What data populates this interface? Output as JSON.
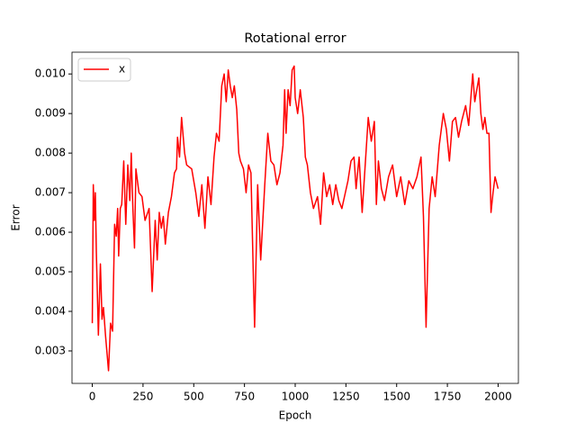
{
  "chart_data": {
    "type": "line",
    "title": "Rotational error",
    "xlabel": "Epoch",
    "ylabel": "Error",
    "legend": "upper left",
    "x": [
      0,
      5,
      10,
      15,
      20,
      30,
      40,
      48,
      55,
      65,
      80,
      90,
      100,
      110,
      118,
      125,
      130,
      138,
      145,
      155,
      165,
      175,
      185,
      192,
      200,
      208,
      215,
      230,
      245,
      260,
      280,
      295,
      310,
      320,
      330,
      340,
      350,
      360,
      375,
      390,
      405,
      415,
      420,
      430,
      440,
      455,
      465,
      490,
      510,
      525,
      540,
      555,
      570,
      585,
      600,
      612,
      625,
      638,
      650,
      660,
      670,
      680,
      690,
      700,
      712,
      722,
      730,
      745,
      758,
      770,
      782,
      795,
      800,
      815,
      830,
      850,
      865,
      880,
      895,
      910,
      925,
      940,
      948,
      955,
      965,
      975,
      985,
      995,
      1000,
      1012,
      1025,
      1040,
      1050,
      1060,
      1075,
      1090,
      1110,
      1125,
      1140,
      1155,
      1170,
      1185,
      1200,
      1215,
      1230,
      1260,
      1275,
      1290,
      1300,
      1315,
      1330,
      1345,
      1360,
      1375,
      1390,
      1400,
      1410,
      1425,
      1440,
      1460,
      1480,
      1500,
      1520,
      1540,
      1560,
      1580,
      1600,
      1620,
      1632,
      1645,
      1660,
      1675,
      1690,
      1710,
      1730,
      1745,
      1760,
      1775,
      1790,
      1805,
      1820,
      1840,
      1855,
      1875,
      1885,
      1895,
      1905,
      1915,
      1925,
      1935,
      1945,
      1955,
      1965,
      1975,
      1985,
      2000
    ],
    "series": [
      {
        "name": "x",
        "color": "#ff0000",
        "values": [
          0.0037,
          0.0072,
          0.0063,
          0.007,
          0.0055,
          0.0034,
          0.0052,
          0.0038,
          0.0041,
          0.0034,
          0.0025,
          0.0037,
          0.0035,
          0.0062,
          0.0059,
          0.0066,
          0.0054,
          0.0066,
          0.0067,
          0.0078,
          0.0062,
          0.0077,
          0.0068,
          0.008,
          0.0066,
          0.0056,
          0.0076,
          0.007,
          0.0069,
          0.0063,
          0.0066,
          0.0045,
          0.0063,
          0.0053,
          0.0065,
          0.0061,
          0.0064,
          0.0057,
          0.0065,
          0.0069,
          0.0075,
          0.0076,
          0.0084,
          0.0079,
          0.0089,
          0.008,
          0.0077,
          0.0076,
          0.007,
          0.0064,
          0.0072,
          0.0061,
          0.0074,
          0.0067,
          0.0079,
          0.0085,
          0.0083,
          0.0097,
          0.01,
          0.0093,
          0.0101,
          0.0097,
          0.0094,
          0.0097,
          0.0091,
          0.008,
          0.0078,
          0.0076,
          0.007,
          0.0077,
          0.0075,
          0.0046,
          0.0036,
          0.0072,
          0.0053,
          0.0072,
          0.0085,
          0.0078,
          0.0077,
          0.0072,
          0.0075,
          0.0082,
          0.0096,
          0.0085,
          0.0096,
          0.0092,
          0.0101,
          0.0102,
          0.0094,
          0.009,
          0.0096,
          0.0089,
          0.0079,
          0.0077,
          0.007,
          0.0066,
          0.0069,
          0.0062,
          0.0075,
          0.0069,
          0.0072,
          0.0067,
          0.0072,
          0.0068,
          0.0066,
          0.0073,
          0.0078,
          0.0079,
          0.0071,
          0.0079,
          0.0065,
          0.0077,
          0.0089,
          0.0083,
          0.0088,
          0.0067,
          0.0078,
          0.0071,
          0.0068,
          0.0074,
          0.0077,
          0.0069,
          0.0074,
          0.0067,
          0.0073,
          0.0071,
          0.0074,
          0.0079,
          0.0064,
          0.0036,
          0.0066,
          0.0074,
          0.0069,
          0.0082,
          0.009,
          0.0086,
          0.0078,
          0.0088,
          0.0089,
          0.0084,
          0.0088,
          0.0092,
          0.0087,
          0.01,
          0.0093,
          0.0096,
          0.0099,
          0.009,
          0.0086,
          0.0089,
          0.0085,
          0.0085,
          0.0065,
          0.007,
          0.0074,
          0.0071
        ]
      }
    ],
    "xlim": [
      -100,
      2100
    ],
    "xticks": [
      0,
      250,
      500,
      750,
      1000,
      1250,
      1500,
      1750,
      2000
    ],
    "ylim": [
      0.00218,
      0.01055
    ],
    "yticks": [
      0.003,
      0.004,
      0.005,
      0.006,
      0.007,
      0.008,
      0.009,
      {
        "value": 0.01,
        "label": "0.010"
      }
    ]
  }
}
